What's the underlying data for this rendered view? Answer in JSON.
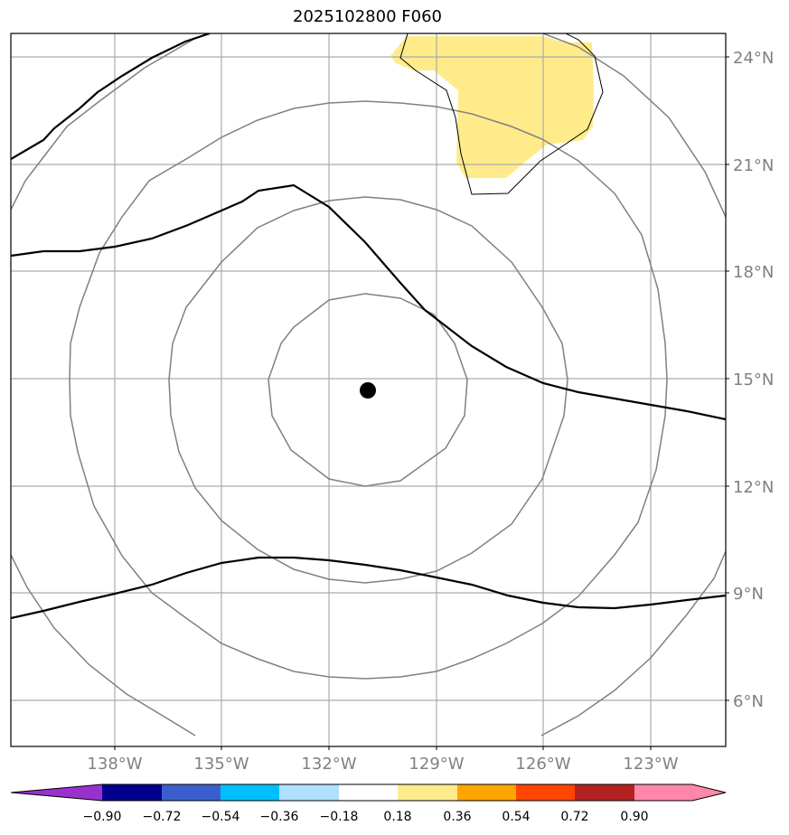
{
  "title": "2025102800 F060",
  "map": {
    "lat_labels": [
      "24°N",
      "21°N",
      "18°N",
      "15°N",
      "12°N",
      "9°N",
      "6°N"
    ],
    "lon_labels": [
      "138°W",
      "135°W",
      "132°W",
      "129°W",
      "126°W",
      "123°W"
    ],
    "storm_center": {
      "lat": 14.7,
      "lon": 131.0
    },
    "shaded_value_range": [
      0.18,
      0.36
    ],
    "colors": {
      "gridline": "#aaaaaa",
      "range_rings": "#808080",
      "contour": "#000000",
      "shading": "#ffeb8a",
      "center": "#000000"
    }
  },
  "colorbar": {
    "tick_labels": [
      "−0.90",
      "−0.72",
      "−0.54",
      "−0.36",
      "−0.18",
      "0.18",
      "0.36",
      "0.54",
      "0.72",
      "0.90"
    ],
    "colors": [
      "#9932cc",
      "#00008b",
      "#3a5fcd",
      "#00bfff",
      "#b0e0ff",
      "#ffffff",
      "#ffeb8a",
      "#ffa500",
      "#ff4500",
      "#b22222",
      "#ff88aa"
    ]
  }
}
